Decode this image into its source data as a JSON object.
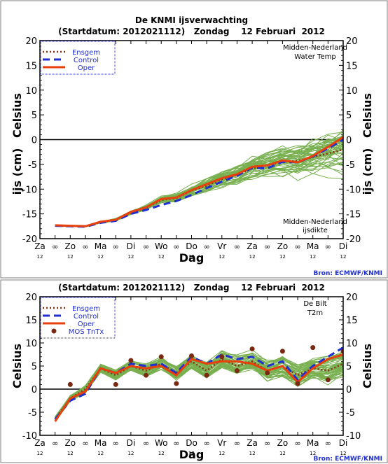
{
  "chart_data": [
    {
      "type": "line",
      "title": "De KNMI ijsverwachting",
      "subtitle": "(Startdatum: 2012021112)   Zondag    12 Februari  2012",
      "ylabel_left": "Celsius",
      "ylabel_left2": "ijs (cm)",
      "ylabel_right": "Celsius",
      "ylabel_right2": "ijs (cm)",
      "xlabel": "Dag",
      "ylim": [
        -20,
        20
      ],
      "yticks": [
        -20,
        -15,
        -10,
        -5,
        0,
        5,
        10,
        15,
        20
      ],
      "xlim": [
        0,
        20
      ],
      "x_ticks": [
        {
          "x": 0,
          "label": "Za",
          "sub": "12"
        },
        {
          "x": 1,
          "label": "∞",
          "sub": ""
        },
        {
          "x": 2,
          "label": "Zo",
          "sub": "12"
        },
        {
          "x": 3,
          "label": "∞",
          "sub": ""
        },
        {
          "x": 4,
          "label": "Ma",
          "sub": "12"
        },
        {
          "x": 5,
          "label": "∞",
          "sub": ""
        },
        {
          "x": 6,
          "label": "Di",
          "sub": "12"
        },
        {
          "x": 7,
          "label": "∞",
          "sub": ""
        },
        {
          "x": 8,
          "label": "Wo",
          "sub": "12"
        },
        {
          "x": 9,
          "label": "∞",
          "sub": ""
        },
        {
          "x": 10,
          "label": "Do",
          "sub": "12"
        },
        {
          "x": 11,
          "label": "∞",
          "sub": ""
        },
        {
          "x": 12,
          "label": "Vr",
          "sub": "12"
        },
        {
          "x": 13,
          "label": "∞",
          "sub": ""
        },
        {
          "x": 14,
          "label": "Za",
          "sub": "12"
        },
        {
          "x": 15,
          "label": "∞",
          "sub": ""
        },
        {
          "x": 16,
          "label": "Zo",
          "sub": "12"
        },
        {
          "x": 17,
          "label": "∞",
          "sub": ""
        },
        {
          "x": 18,
          "label": "Ma",
          "sub": "12"
        },
        {
          "x": 19,
          "label": "∞",
          "sub": ""
        },
        {
          "x": 20,
          "label": "Di",
          "sub": "12"
        }
      ],
      "annotation_top": [
        "Midden-Nederland",
        "Water Temp"
      ],
      "annotation_bottom": [
        "Midden-Nederland",
        "ijsdikte"
      ],
      "source": "Bron: ECMWF/KNMI",
      "legend_position": "top-left",
      "zero_line": true,
      "series": [
        {
          "name": "Ensgem",
          "color": "#8b2e14",
          "style": "dotted",
          "x": [
            1,
            2,
            3,
            4,
            5,
            6,
            7,
            8,
            9,
            10,
            11,
            12,
            13,
            14,
            15,
            16,
            17,
            18,
            19,
            20
          ],
          "values": [
            -17.4,
            -17.5,
            -17.5,
            -16.7,
            -16.2,
            -14.8,
            -13.8,
            -12.2,
            -11.8,
            -10.3,
            -9.3,
            -8.0,
            -7.2,
            -5.8,
            -5.2,
            -4.5,
            -4.3,
            -3.5,
            -2.8,
            -2.0
          ]
        },
        {
          "name": "Control",
          "color": "#1f2fd0",
          "style": "dashed",
          "x": [
            1,
            2,
            3,
            4,
            5,
            6,
            7,
            8,
            9,
            10,
            11,
            12,
            13,
            14,
            15,
            16,
            17,
            18,
            19,
            20
          ],
          "values": [
            -17.4,
            -17.5,
            -17.6,
            -16.8,
            -16.4,
            -15.0,
            -14.2,
            -13.2,
            -12.4,
            -11.2,
            -9.8,
            -8.5,
            -7.3,
            -5.7,
            -5.8,
            -4.5,
            -4.6,
            -3.4,
            -1.8,
            0.0
          ]
        },
        {
          "name": "Oper",
          "color": "#e8400c",
          "style": "solid",
          "x": [
            1,
            2,
            3,
            4,
            5,
            6,
            7,
            8,
            9,
            10,
            11,
            12,
            13,
            14,
            15,
            16,
            17,
            18,
            19,
            20
          ],
          "values": [
            -17.3,
            -17.4,
            -17.5,
            -16.6,
            -16.2,
            -14.6,
            -13.7,
            -12.0,
            -11.7,
            -10.2,
            -9.0,
            -7.8,
            -7.0,
            -5.5,
            -5.2,
            -4.2,
            -4.6,
            -3.3,
            -1.5,
            0.5
          ]
        }
      ]
    },
    {
      "type": "line",
      "subtitle": "(Startdatum: 2012021112)   Zondag    12 Februari  2012",
      "ylabel_left": "Celsius",
      "ylabel_right": "Celsius",
      "xlabel": "Dag",
      "ylim": [
        -10,
        20
      ],
      "yticks": [
        -10,
        -5,
        0,
        5,
        10,
        15,
        20
      ],
      "xlim": [
        0,
        20
      ],
      "annotation_top": [
        "De Bilt",
        "T2m"
      ],
      "source": "Bron: ECMWF/KNMI",
      "legend_position": "top-left",
      "zero_line": true,
      "series": [
        {
          "name": "Ensgem",
          "color": "#8b2e14",
          "style": "dotted",
          "x": [
            1,
            2,
            3,
            4,
            5,
            6,
            7,
            8,
            9,
            10,
            11,
            12,
            13,
            14,
            15,
            16,
            17,
            18,
            19,
            20
          ],
          "values": [
            -6.5,
            -2.0,
            0.0,
            4.5,
            3.0,
            5.0,
            4.0,
            5.5,
            3.5,
            6.0,
            4.0,
            6.5,
            5.0,
            6.0,
            4.0,
            5.0,
            3.0,
            4.5,
            4.0,
            5.5
          ]
        },
        {
          "name": "Control",
          "color": "#1f2fd0",
          "style": "dashed",
          "x": [
            1,
            2,
            3,
            4,
            5,
            6,
            7,
            8,
            9,
            10,
            11,
            12,
            13,
            14,
            15,
            16,
            17,
            18,
            19,
            20
          ],
          "values": [
            -6.5,
            -2.5,
            -1.0,
            4.5,
            3.5,
            5.5,
            5.0,
            5.5,
            3.5,
            7.0,
            5.5,
            7.5,
            6.5,
            7.0,
            5.0,
            6.0,
            2.0,
            5.0,
            7.0,
            9.0
          ]
        },
        {
          "name": "Oper",
          "color": "#e8400c",
          "style": "solid",
          "x": [
            1,
            2,
            3,
            4,
            5,
            6,
            7,
            8,
            9,
            10,
            11,
            12,
            13,
            14,
            15,
            16,
            17,
            18,
            19,
            20
          ],
          "values": [
            -7.0,
            -2.0,
            -0.5,
            4.5,
            3.5,
            5.0,
            4.5,
            5.0,
            3.0,
            6.5,
            5.5,
            6.0,
            6.0,
            5.5,
            4.0,
            5.0,
            1.5,
            4.5,
            6.5,
            7.5
          ]
        },
        {
          "name": "MOS TnTx",
          "color": "#7a2a12",
          "style": "markers",
          "x": [
            2,
            5,
            6,
            7,
            8,
            9,
            10,
            11,
            12,
            13,
            14,
            15,
            16,
            17,
            18,
            19,
            20
          ],
          "values": [
            1.0,
            1.0,
            6.2,
            3.0,
            7.0,
            1.2,
            7.2,
            3.0,
            7.0,
            4.0,
            8.7,
            3.5,
            8.2,
            1.2,
            9.0,
            2.0,
            8.2
          ]
        }
      ]
    }
  ]
}
